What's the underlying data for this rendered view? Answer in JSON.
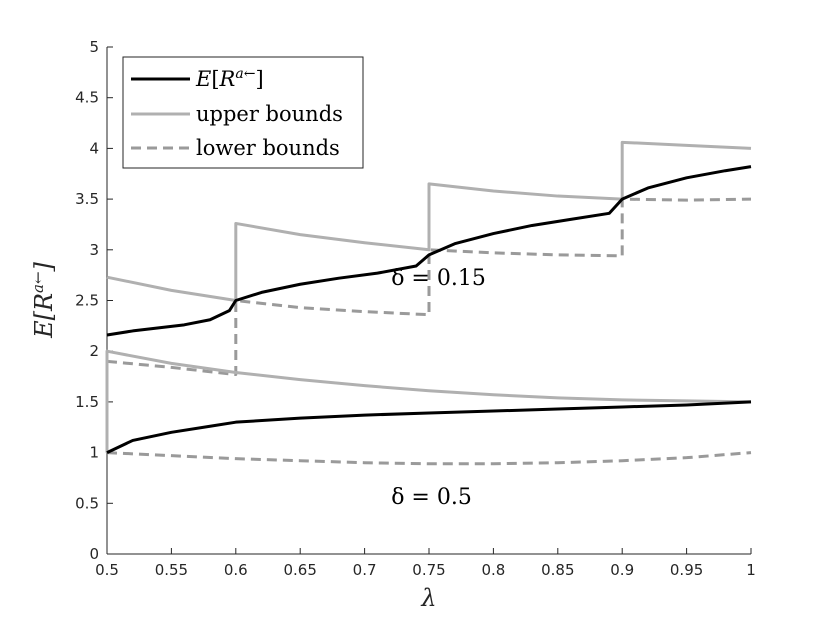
{
  "chart_data": {
    "type": "line",
    "xlabel": "λ",
    "ylabel": "E[R^{a←}]",
    "xlim": [
      0.5,
      1
    ],
    "ylim": [
      0,
      5
    ],
    "xticks": [
      "0.5",
      "0.55",
      "0.6",
      "0.65",
      "0.7",
      "0.75",
      "0.8",
      "0.85",
      "0.9",
      "0.95",
      "1"
    ],
    "yticks": [
      "0",
      "0.5",
      "1",
      "1.5",
      "2",
      "2.5",
      "3",
      "3.5",
      "4",
      "4.5",
      "5"
    ],
    "grid": false,
    "legend_position": "top-left",
    "legend": [
      {
        "label": "E[R^{a←}]",
        "style": "solid",
        "color": "#000000"
      },
      {
        "label": "upper bounds",
        "style": "solid",
        "color": "#b0b0b0"
      },
      {
        "label": "lower bounds",
        "style": "dashed",
        "color": "#9a9a9a"
      }
    ],
    "annotations": [
      {
        "text": "δ = 0.15",
        "x": 0.775,
        "y": 2.72
      },
      {
        "text": "δ = 0.5",
        "x": 0.775,
        "y": 0.56
      }
    ],
    "series": [
      {
        "role": "expected",
        "group": "δ = 0.15",
        "style": "solid",
        "color": "#000000",
        "x": [
          0.5,
          0.52,
          0.54,
          0.56,
          0.58,
          0.595,
          0.6,
          0.62,
          0.65,
          0.68,
          0.71,
          0.74,
          0.75,
          0.77,
          0.8,
          0.83,
          0.86,
          0.89,
          0.9,
          0.92,
          0.95,
          0.98,
          1.0
        ],
        "y": [
          2.16,
          2.2,
          2.23,
          2.26,
          2.31,
          2.4,
          2.5,
          2.58,
          2.66,
          2.72,
          2.77,
          2.84,
          2.95,
          3.06,
          3.16,
          3.24,
          3.3,
          3.36,
          3.5,
          3.61,
          3.71,
          3.78,
          3.82
        ]
      },
      {
        "role": "upper",
        "group": "δ = 0.15",
        "style": "solid",
        "color": "#b0b0b0",
        "x": [
          0.5,
          0.55,
          0.6,
          0.6,
          0.65,
          0.7,
          0.75,
          0.75,
          0.8,
          0.85,
          0.9,
          0.9,
          0.95,
          1.0
        ],
        "y": [
          2.73,
          2.6,
          2.5,
          3.26,
          3.15,
          3.07,
          3.0,
          3.65,
          3.58,
          3.53,
          3.5,
          4.06,
          4.03,
          4.0
        ]
      },
      {
        "role": "lower",
        "group": "δ = 0.15",
        "style": "dashed",
        "color": "#9a9a9a",
        "x": [
          0.5,
          0.55,
          0.6,
          0.6,
          0.65,
          0.7,
          0.75,
          0.75,
          0.8,
          0.85,
          0.9,
          0.9,
          0.95,
          1.0
        ],
        "y": [
          1.9,
          1.84,
          1.77,
          2.5,
          2.43,
          2.39,
          2.36,
          3.0,
          2.97,
          2.95,
          2.94,
          3.5,
          3.49,
          3.5
        ]
      },
      {
        "role": "expected",
        "group": "δ = 0.5",
        "style": "solid",
        "color": "#000000",
        "x": [
          0.5,
          0.52,
          0.55,
          0.58,
          0.6,
          0.65,
          0.7,
          0.75,
          0.8,
          0.85,
          0.9,
          0.95,
          1.0
        ],
        "y": [
          1.0,
          1.12,
          1.2,
          1.26,
          1.3,
          1.34,
          1.37,
          1.39,
          1.41,
          1.43,
          1.45,
          1.47,
          1.5
        ]
      },
      {
        "role": "upper",
        "group": "δ = 0.5",
        "style": "solid",
        "color": "#b0b0b0",
        "x": [
          0.5,
          0.5,
          0.55,
          0.6,
          0.65,
          0.7,
          0.75,
          0.8,
          0.85,
          0.9,
          0.95,
          1.0
        ],
        "y": [
          1.0,
          2.0,
          1.88,
          1.79,
          1.72,
          1.66,
          1.61,
          1.57,
          1.54,
          1.52,
          1.51,
          1.5
        ]
      },
      {
        "role": "lower",
        "group": "δ = 0.5",
        "style": "dashed",
        "color": "#9a9a9a",
        "x": [
          0.5,
          0.55,
          0.6,
          0.65,
          0.7,
          0.75,
          0.8,
          0.85,
          0.9,
          0.95,
          1.0
        ],
        "y": [
          1.0,
          0.97,
          0.94,
          0.92,
          0.9,
          0.89,
          0.89,
          0.9,
          0.92,
          0.95,
          1.0
        ]
      }
    ]
  }
}
